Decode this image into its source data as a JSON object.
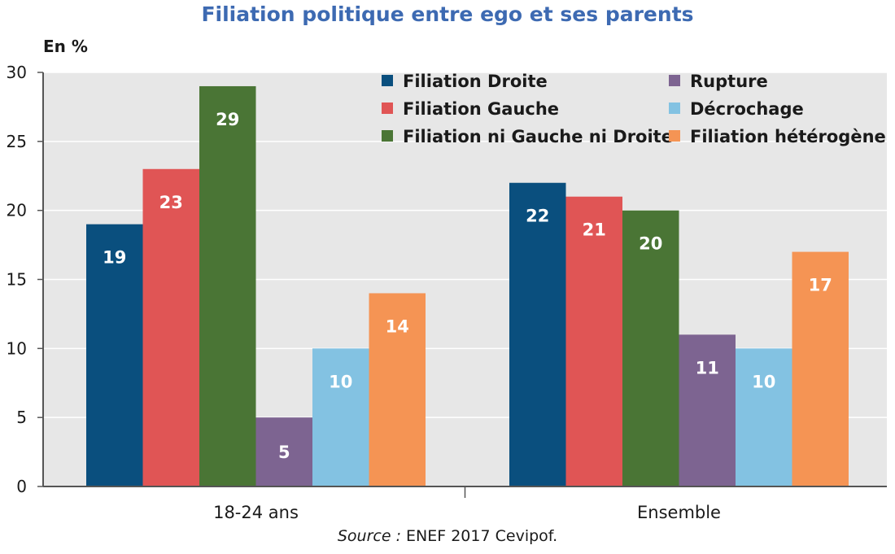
{
  "colors": {
    "plot_bg": "#e7e7e7",
    "title": "#3d6ab2",
    "axis": "#555555",
    "text": "#1a1a1a",
    "label_on_bar": "#ffffff"
  },
  "chart_data": {
    "type": "bar",
    "title": "Filiation politique entre ego et ses parents",
    "ylabel": "En %",
    "xlabel": "",
    "categories": [
      "18-24 ans",
      "Ensemble"
    ],
    "ylim": [
      0,
      30
    ],
    "yticks": [
      0,
      5,
      10,
      15,
      20,
      25,
      30
    ],
    "grid": true,
    "legend_position": "top-right",
    "series": [
      {
        "name": "Filiation Droite",
        "color": "#0a4f7e",
        "values": [
          19,
          22
        ]
      },
      {
        "name": "Filiation Gauche",
        "color": "#e05555",
        "values": [
          23,
          21
        ]
      },
      {
        "name": "Filiation ni Gauche ni Droite",
        "color": "#4a7535",
        "values": [
          29,
          20
        ]
      },
      {
        "name": "Rupture",
        "color": "#7d6491",
        "values": [
          5,
          11
        ]
      },
      {
        "name": "Décrochage",
        "color": "#83c2e2",
        "values": [
          10,
          10
        ]
      },
      {
        "name": "Filiation hétérogène",
        "color": "#f59454",
        "values": [
          14,
          17
        ]
      }
    ]
  },
  "source": {
    "label": "Source :",
    "text": "ENEF 2017 Cevipof."
  }
}
